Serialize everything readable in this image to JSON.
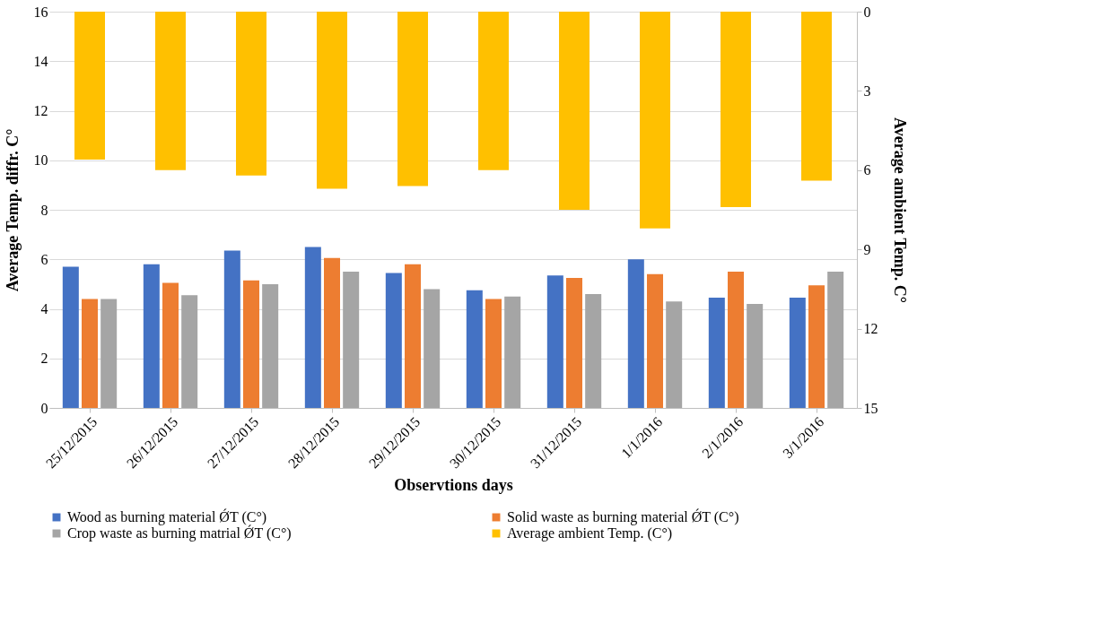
{
  "chart_data": {
    "type": "bar",
    "xlabel": "Observtions days",
    "ylabel": "Average  Temp. diffr. C°",
    "y2label": "Average ambient Temp. C°",
    "categories": [
      "25/12/2015",
      "26/12/2015",
      "27/12/2015",
      "28/12/2015",
      "29/12/2015",
      "30/12/2015",
      "31/12/2015",
      "1/1/2016",
      "2/1/2016",
      "3/1/2016"
    ],
    "series": [
      {
        "name": "Wood as burning material ǾT (C°)",
        "color": "#4472c4",
        "values": [
          5.7,
          5.8,
          6.35,
          6.5,
          5.45,
          4.75,
          5.35,
          6.0,
          4.45,
          4.45
        ]
      },
      {
        "name": "Solid waste as burning material ǾT (C°)",
        "color": "#ed7d31",
        "values": [
          4.4,
          5.05,
          5.15,
          6.05,
          5.8,
          4.4,
          5.25,
          5.4,
          5.5,
          4.95
        ]
      },
      {
        "name": "Crop waste as burning matrial ǾT (C°)",
        "color": "#a5a5a5",
        "values": [
          4.4,
          4.55,
          5.0,
          5.5,
          4.8,
          4.5,
          4.6,
          4.3,
          4.2,
          5.5
        ]
      },
      {
        "name": "Average ambient Temp.  (C°)",
        "color": "#ffc000",
        "axis": "y2",
        "values": [
          5.6,
          6.0,
          6.2,
          6.7,
          6.6,
          6.0,
          7.5,
          8.2,
          7.4,
          6.4
        ]
      }
    ],
    "ylim": [
      0,
      16
    ],
    "yticks": [
      0,
      2,
      4,
      6,
      8,
      10,
      12,
      14,
      16
    ],
    "y2lim": [
      15,
      0
    ],
    "y2ticks": [
      0,
      3,
      6,
      9,
      12,
      15
    ],
    "grid": "y",
    "legend": "bottom"
  }
}
